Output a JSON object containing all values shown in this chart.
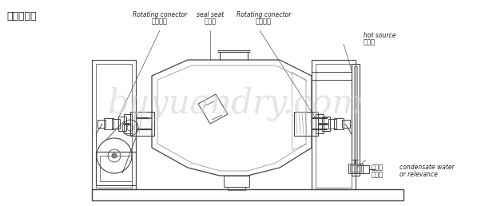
{
  "title": "简易结构图",
  "watermark": "buyuandry.com",
  "labels": {
    "rot_left_en": "Rotating conector",
    "rot_left_cn": "旋转接头",
    "seal_en": "seal seat",
    "seal_cn": "密封座",
    "rot_right_en": "Rotating conector",
    "rot_right_cn": "旋转接头",
    "hot_en": "hot source",
    "hot_cn": "进热源",
    "cond_cn1": "冷凝器",
    "cond_cn2": "或回流",
    "cond_en1": "condensate water",
    "cond_en2": "or relevance"
  },
  "bg_color": "#ffffff",
  "lc": "#444444",
  "wm_color": "#d0d0d0",
  "tc": "#222222"
}
